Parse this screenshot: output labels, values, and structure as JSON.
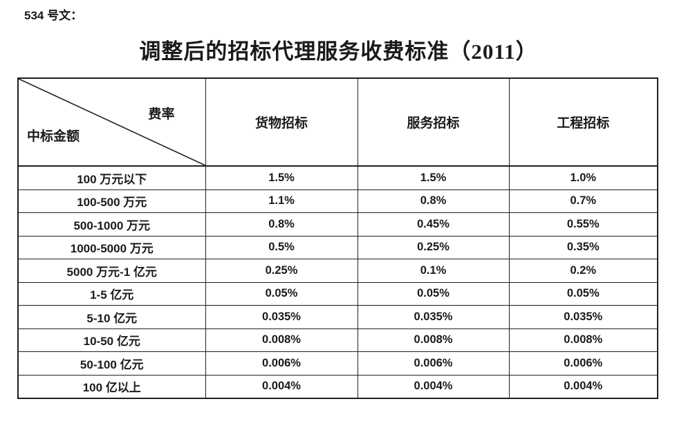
{
  "page": {
    "doc_ref": "534 号文：",
    "title": "调整后的招标代理服务收费标准（2011）"
  },
  "table": {
    "corner": {
      "top_right": "费率",
      "bottom_left": "中标金额"
    },
    "columns": [
      "货物招标",
      "服务招标",
      "工程招标"
    ],
    "rows": [
      {
        "label": "100 万元以下",
        "values": [
          "1.5%",
          "1.5%",
          "1.0%"
        ]
      },
      {
        "label": "100-500 万元",
        "values": [
          "1.1%",
          "0.8%",
          "0.7%"
        ]
      },
      {
        "label": "500-1000 万元",
        "values": [
          "0.8%",
          "0.45%",
          "0.55%"
        ]
      },
      {
        "label": "1000-5000 万元",
        "values": [
          "0.5%",
          "0.25%",
          "0.35%"
        ]
      },
      {
        "label": "5000 万元-1 亿元",
        "values": [
          "0.25%",
          "0.1%",
          "0.2%"
        ]
      },
      {
        "label": "1-5 亿元",
        "values": [
          "0.05%",
          "0.05%",
          "0.05%"
        ]
      },
      {
        "label": "5-10 亿元",
        "values": [
          "0.035%",
          "0.035%",
          "0.035%"
        ]
      },
      {
        "label": "10-50 亿元",
        "values": [
          "0.008%",
          "0.008%",
          "0.008%"
        ]
      },
      {
        "label": "50-100 亿元",
        "values": [
          "0.006%",
          "0.006%",
          "0.006%"
        ]
      },
      {
        "label": "100 亿以上",
        "values": [
          "0.004%",
          "0.004%",
          "0.004%"
        ]
      }
    ],
    "border_color": "#1f1f1f"
  }
}
